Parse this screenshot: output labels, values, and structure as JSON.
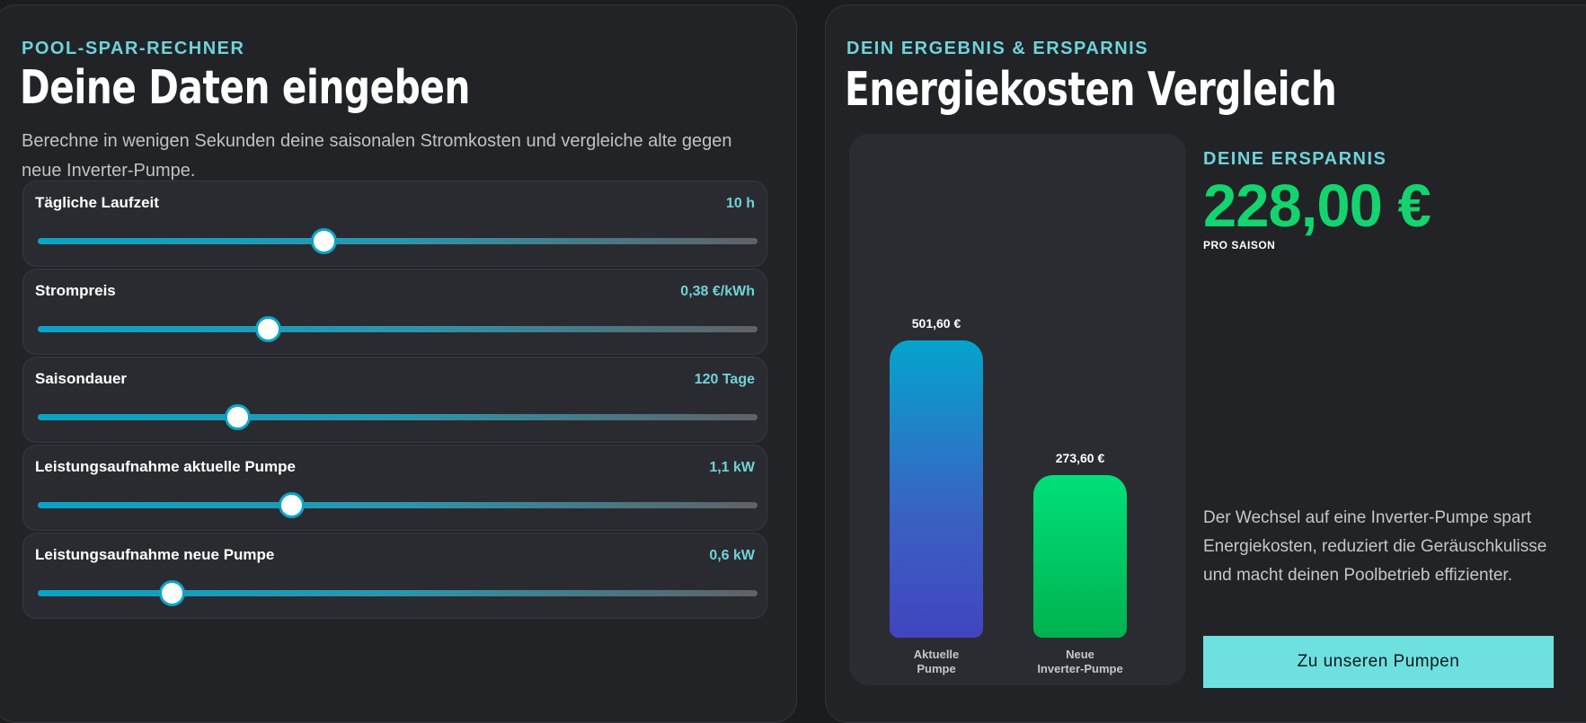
{
  "left": {
    "eyebrow": "POOL-SPAR-RECHNER",
    "title": "Deine Daten eingeben",
    "intro": "Berechne in wenigen Sekunden deine saisonalen Stromkosten und vergleiche alte gegen neue Inverter-Pumpe.",
    "sliders": [
      {
        "label": "Tägliche Laufzeit",
        "value": "10 h",
        "fraction": 0.395
      },
      {
        "label": "Strompreis",
        "value": "0,38 €/kWh",
        "fraction": 0.317
      },
      {
        "label": "Saisondauer",
        "value": "120 Tage",
        "fraction": 0.275
      },
      {
        "label": "Leistungsaufnahme aktuelle Pumpe",
        "value": "1,1 kW",
        "fraction": 0.35
      },
      {
        "label": "Leistungsaufnahme neue Pumpe",
        "value": "0,6 kW",
        "fraction": 0.183
      }
    ]
  },
  "right": {
    "eyebrow": "DEIN ERGEBNIS & ERSPARNIS",
    "title": "Energiekosten Vergleich",
    "savings_label": "DEINE ERSPARNIS",
    "savings_amount": "228,00 €",
    "savings_sub": "PRO SAISON",
    "description": "Der Wechsel auf eine Inverter-Pumpe spart Energiekosten, reduziert die Geräuschkulisse und macht deinen Poolbetrieb effizienter.",
    "cta": "Zu unseren Pumpen"
  },
  "chart_data": {
    "type": "bar",
    "categories": [
      "Aktuelle Pumpe",
      "Neue Inverter-Pumpe"
    ],
    "category_lines": [
      [
        "Aktuelle",
        "Pumpe"
      ],
      [
        "Neue",
        "Inverter-Pumpe"
      ]
    ],
    "values": [
      501.6,
      273.6
    ],
    "value_labels": [
      "501,60 €",
      "273,60 €"
    ],
    "colors": [
      "#05a4cd",
      "#00e07a"
    ]
  }
}
